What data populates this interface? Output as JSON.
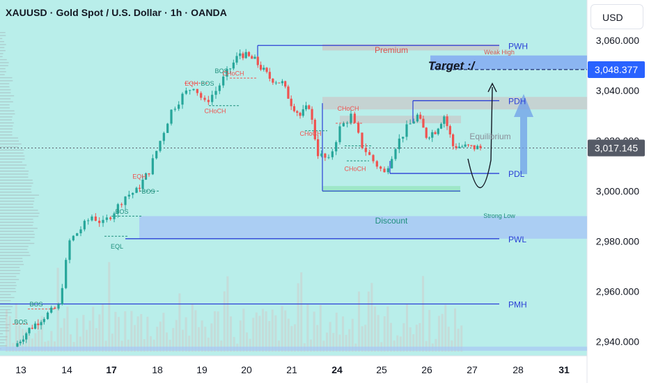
{
  "header": {
    "title": "XAUUSD · Gold Spot / U.S. Dollar · 1h · OANDA",
    "currency": "USD"
  },
  "colors": {
    "background": "#b9eeea",
    "axis_background": "#ffffff",
    "bull": "#26a69a",
    "bear": "#ef5350",
    "level_line": "#2a3fd6",
    "zone_grey": "#c9c9c9",
    "zone_blue": "#a8c8f4",
    "target_box": "#86aef2",
    "price_label": "#555a66",
    "target_label": "#2962ff"
  },
  "chart_data": {
    "type": "candlestick",
    "y_axis": {
      "range": [
        2936,
        3070
      ],
      "ticks": [
        2940,
        2960,
        2980,
        3000,
        3020,
        3040,
        3060
      ],
      "tick_labels": [
        "2,940.000",
        "2,960.000",
        "2,980.000",
        "3,000.000",
        "3,020.000",
        "3,040.000",
        "3,060.000"
      ]
    },
    "x_axis": {
      "labels": [
        {
          "text": "13",
          "bold": false
        },
        {
          "text": "14",
          "bold": false
        },
        {
          "text": "17",
          "bold": true
        },
        {
          "text": "18",
          "bold": false
        },
        {
          "text": "19",
          "bold": false
        },
        {
          "text": "20",
          "bold": false
        },
        {
          "text": "21",
          "bold": false
        },
        {
          "text": "24",
          "bold": true
        },
        {
          "text": "25",
          "bold": false
        },
        {
          "text": "26",
          "bold": false
        },
        {
          "text": "27",
          "bold": false
        },
        {
          "text": "28",
          "bold": false
        },
        {
          "text": "31",
          "bold": true
        }
      ]
    },
    "price_markers": [
      {
        "value": 3048.377,
        "label": "3,048.377",
        "kind": "target"
      },
      {
        "value": 3017.145,
        "label": "3,017.145",
        "kind": "last"
      }
    ],
    "close_path": [
      [
        "13",
        2938
      ],
      [
        "13",
        2945
      ],
      [
        "13",
        2950
      ],
      [
        "14",
        2954
      ],
      [
        "14",
        2980
      ],
      [
        "14",
        2985
      ],
      [
        "14",
        2990
      ],
      [
        "17",
        2987
      ],
      [
        "17",
        2992
      ],
      [
        "17",
        2998
      ],
      [
        "17",
        3000
      ],
      [
        "18",
        3008
      ],
      [
        "18",
        3020
      ],
      [
        "18",
        3032
      ],
      [
        "18",
        3038
      ],
      [
        "19",
        3042
      ],
      [
        "19",
        3035
      ],
      [
        "19",
        3040
      ],
      [
        "19",
        3047
      ],
      [
        "20",
        3055
      ],
      [
        "20",
        3052
      ],
      [
        "20",
        3045
      ],
      [
        "21",
        3043
      ],
      [
        "21",
        3035
      ],
      [
        "21",
        3030
      ],
      [
        "21",
        3034
      ],
      [
        "21",
        3015
      ],
      [
        "24",
        3012
      ],
      [
        "24",
        3025
      ],
      [
        "24",
        3030
      ],
      [
        "24",
        3018
      ],
      [
        "25",
        3012
      ],
      [
        "25",
        3007
      ],
      [
        "25",
        3018
      ],
      [
        "25",
        3025
      ],
      [
        "26",
        3030
      ],
      [
        "26",
        3022
      ],
      [
        "26",
        3024
      ],
      [
        "26",
        3030
      ],
      [
        "26",
        3018
      ],
      [
        "27",
        3017.145
      ]
    ],
    "horizontal_levels": [
      {
        "label": "PWH",
        "value": 3058
      },
      {
        "label": "PDH",
        "value": 3036
      },
      {
        "label": "PDL",
        "value": 3007
      },
      {
        "label": "PWL",
        "value": 2981
      },
      {
        "label": "PMH",
        "value": 2955
      }
    ],
    "zones": [
      {
        "label": "Premium",
        "from": 3056,
        "to": 3058.5
      },
      {
        "label": "Equilibrium",
        "from": 3027,
        "to": 3030
      },
      {
        "label": "Discount",
        "from": 2981,
        "to": 2990
      },
      {
        "label": "Target",
        "from": 3048.4,
        "to": 3054
      }
    ],
    "annotations": {
      "premium": "Premium",
      "weak_high": "Weak High",
      "target": "Target :/",
      "equilibrium": "Equilibrium",
      "discount": "Discount",
      "strong_low": "Strong Low",
      "structure_labels": [
        "BOS",
        "BOS",
        "BOS",
        "BOS",
        "EQH",
        "BOS",
        "EQH",
        "BOS",
        "CHoCH",
        "CHoCH",
        "CHoCH",
        "CHoCH",
        "CHoCH",
        "EQL"
      ]
    }
  }
}
